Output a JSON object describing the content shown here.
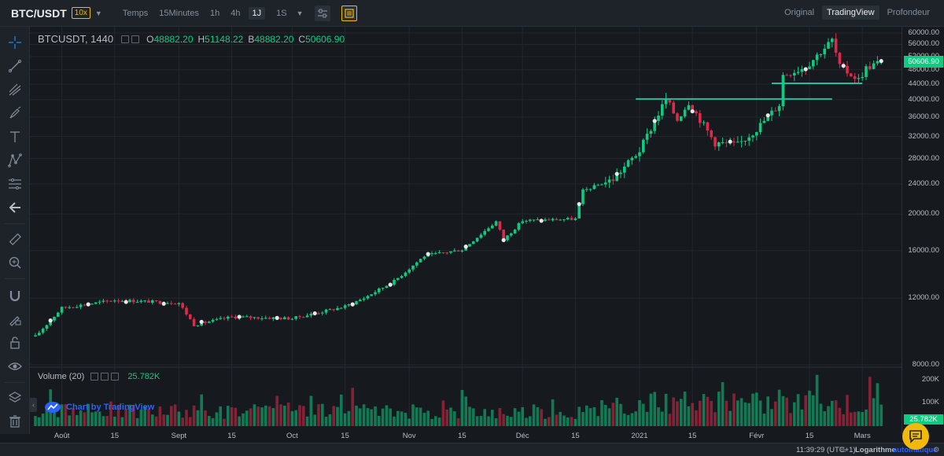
{
  "header": {
    "symbol": "BTC/USDT",
    "leverage": "10x",
    "timeframes": [
      "Temps",
      "15Minutes",
      "1h",
      "4h",
      "1J",
      "1S"
    ],
    "active_timeframe": "1J",
    "views": [
      "Original",
      "TradingView",
      "Profondeur"
    ],
    "active_view": "TradingView"
  },
  "legend": {
    "pair": "BTCUSDT, 1440",
    "o_key": "O",
    "o": "48882.20",
    "h_key": "H",
    "h": "51148.22",
    "b_key": "B",
    "b": "48882.20",
    "c_key": "C",
    "c": "50606.90"
  },
  "volume_legend": {
    "name": "Volume (20)",
    "value": "25.782K"
  },
  "credit": "Chart by TradingView",
  "price_axis": {
    "ticks": [
      "60000.00",
      "56000.00",
      "52000.00",
      "48000.00",
      "44000.00",
      "40000.00",
      "36000.00",
      "32000.00",
      "28000.00",
      "24000.00",
      "20000.00",
      "16000.00",
      "12000.00",
      "8000.00"
    ],
    "last_price": "50606.90",
    "volume_ticks": [
      "200K",
      "100K"
    ],
    "volume_label": "25.782K"
  },
  "time_axis": {
    "ticks": [
      "Août",
      "15",
      "Sept",
      "15",
      "Oct",
      "15",
      "Nov",
      "15",
      "Déc",
      "15",
      "2021",
      "15",
      "Févr",
      "15",
      "Mars"
    ]
  },
  "status": {
    "clock": "11:39:29 (UTC+1)",
    "percent": "%",
    "log": "Logarithme",
    "auto": "automatique"
  },
  "colors": {
    "up": "#0ecb81",
    "down": "#e0294a",
    "level_line": "#1fbf9f",
    "accent": "#f0b90b"
  },
  "icons": [
    "crosshair-icon",
    "trend-line-icon",
    "fork-icon",
    "brush-icon",
    "text-icon",
    "pattern-icon",
    "fib-icon",
    "back-arrow-icon",
    "ruler-icon",
    "zoom-in-icon",
    "magnet-icon",
    "lock-draw-icon",
    "lock-icon",
    "eye-icon",
    "layers-icon",
    "trash-icon",
    "settings-icon",
    "chat-icon"
  ],
  "chart_data": {
    "type": "candlestick",
    "title": "",
    "xlabel": "",
    "ylabel": "",
    "ylim": [
      8000,
      60000
    ],
    "y_scale": "log",
    "price_anchors": [
      {
        "date": "2020-07-25",
        "close": 9500
      },
      {
        "date": "2020-08-01",
        "close": 11300
      },
      {
        "date": "2020-08-15",
        "close": 11850
      },
      {
        "date": "2020-09-01",
        "close": 11650
      },
      {
        "date": "2020-09-05",
        "close": 10200
      },
      {
        "date": "2020-09-15",
        "close": 10700
      },
      {
        "date": "2020-10-01",
        "close": 10600
      },
      {
        "date": "2020-10-15",
        "close": 11400
      },
      {
        "date": "2020-10-20",
        "close": 12000
      },
      {
        "date": "2020-10-28",
        "close": 13300
      },
      {
        "date": "2020-11-05",
        "close": 15500
      },
      {
        "date": "2020-11-15",
        "close": 16100
      },
      {
        "date": "2020-11-24",
        "close": 19100
      },
      {
        "date": "2020-11-26",
        "close": 17100
      },
      {
        "date": "2020-12-01",
        "close": 19200
      },
      {
        "date": "2020-12-15",
        "close": 19400
      },
      {
        "date": "2020-12-17",
        "close": 23000
      },
      {
        "date": "2020-12-25",
        "close": 24700
      },
      {
        "date": "2021-01-01",
        "close": 29400
      },
      {
        "date": "2021-01-08",
        "close": 40200
      },
      {
        "date": "2021-01-11",
        "close": 35500
      },
      {
        "date": "2021-01-14",
        "close": 39500
      },
      {
        "date": "2021-01-21",
        "close": 30800
      },
      {
        "date": "2021-01-27",
        "close": 30400
      },
      {
        "date": "2021-02-01",
        "close": 33500
      },
      {
        "date": "2021-02-07",
        "close": 38900
      },
      {
        "date": "2021-02-08",
        "close": 46500
      },
      {
        "date": "2021-02-14",
        "close": 48900
      },
      {
        "date": "2021-02-21",
        "close": 57500
      },
      {
        "date": "2021-02-23",
        "close": 48900
      },
      {
        "date": "2021-02-28",
        "close": 45200
      },
      {
        "date": "2021-03-02",
        "close": 48500
      },
      {
        "date": "2021-03-06",
        "close": 50606.9
      }
    ],
    "levels": [
      {
        "price": 40200,
        "from": "2020-12-31",
        "to": "2021-02-21"
      },
      {
        "price": 44200,
        "from": "2021-02-05",
        "to": "2021-03-01"
      }
    ],
    "volume_ylim": [
      0,
      230000
    ]
  }
}
